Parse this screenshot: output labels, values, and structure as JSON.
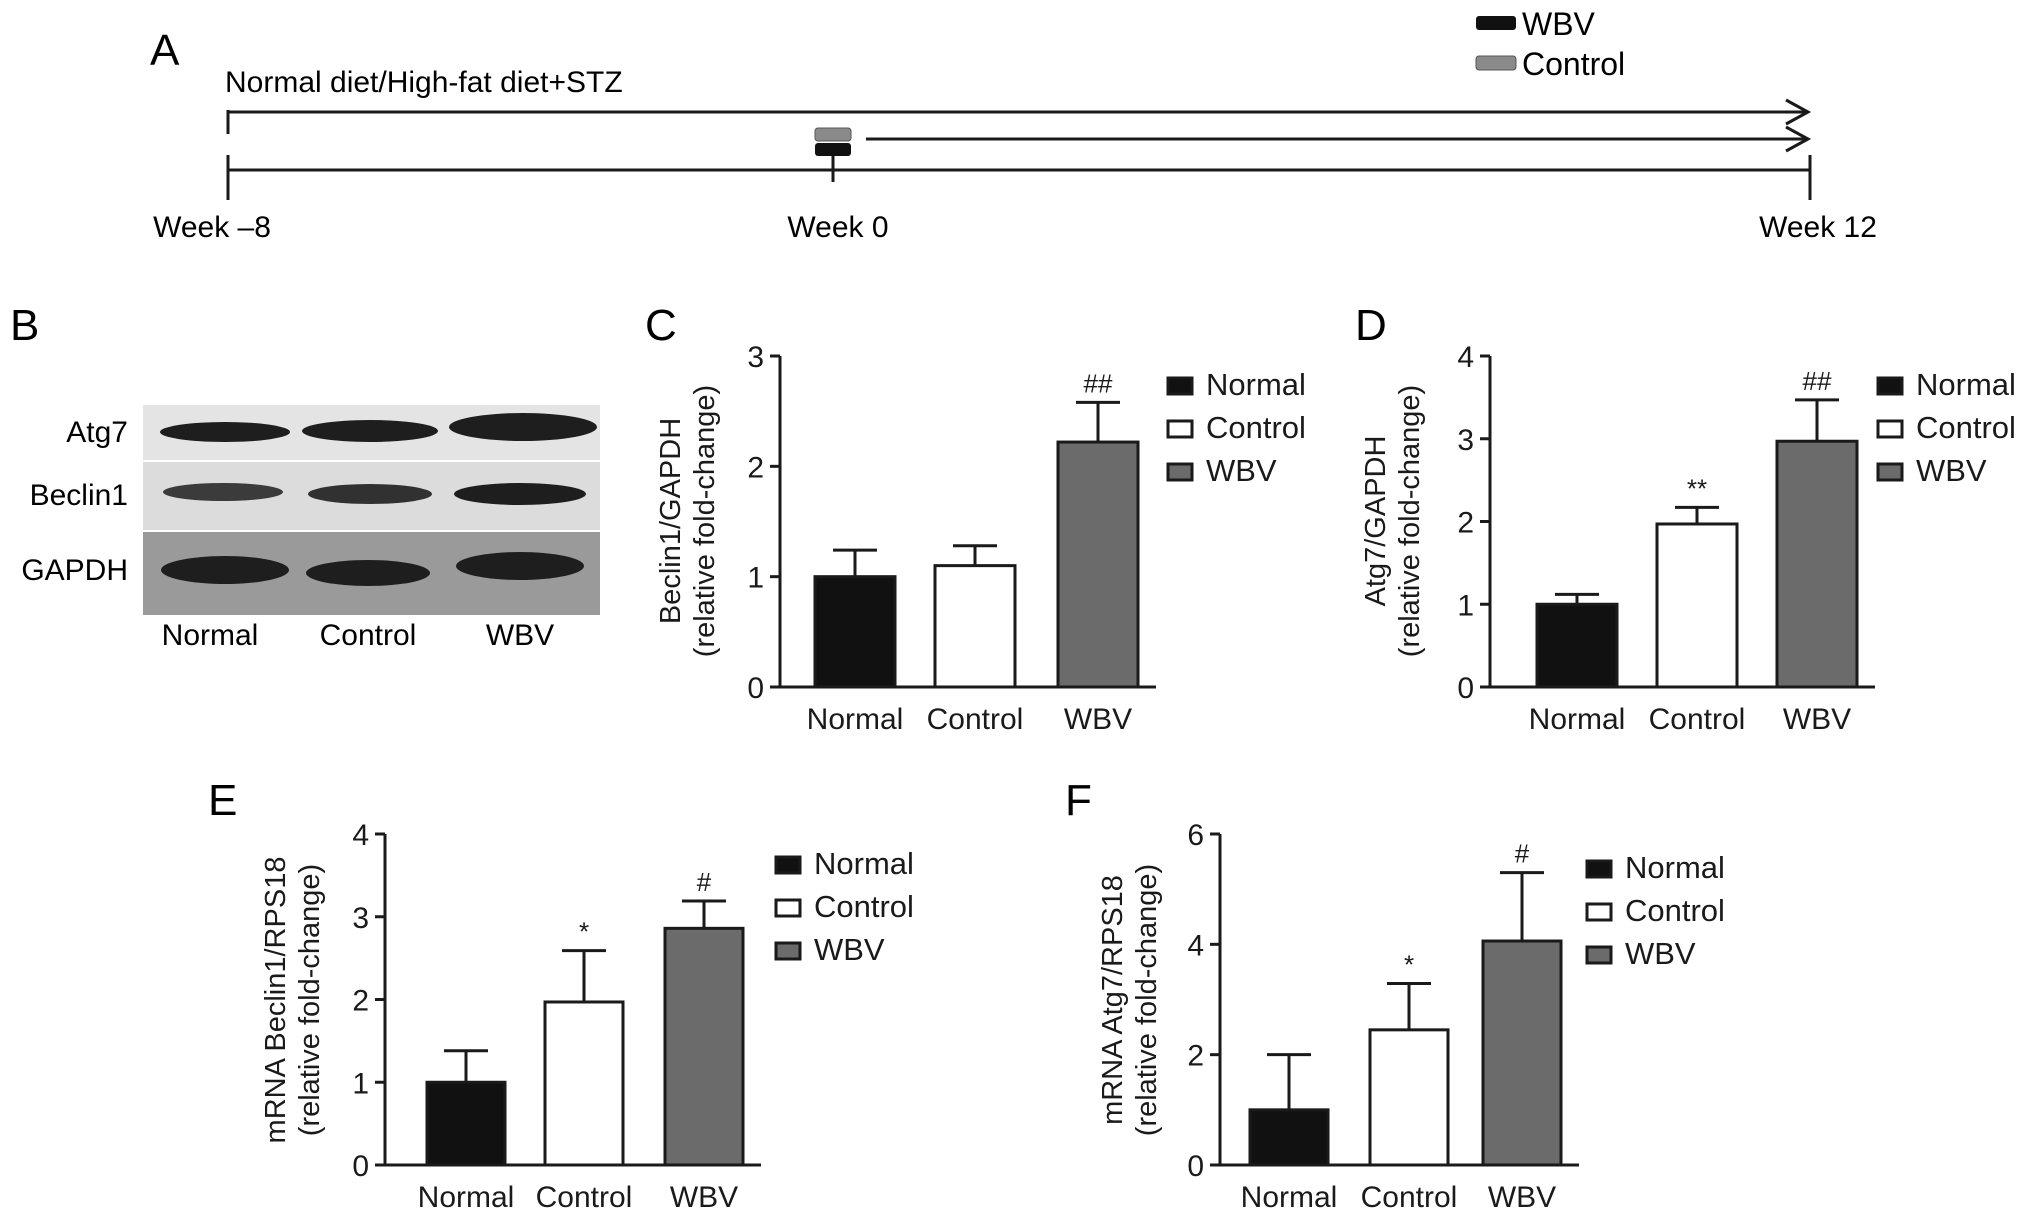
{
  "panel_letters": {
    "a": "A",
    "b": "B",
    "c": "C",
    "d": "D",
    "e": "E",
    "f": "F"
  },
  "timeline": {
    "regimen_label": "Normal diet/High-fat diet+STZ",
    "ticks": [
      "Week –8",
      "Week 0",
      "Week 12"
    ],
    "legend": [
      "WBV",
      "Control"
    ]
  },
  "blot": {
    "rows": [
      "Atg7",
      "Beclin1",
      "GAPDH"
    ],
    "lanes": [
      "Normal",
      "Control",
      "WBV"
    ]
  },
  "colors": {
    "Normal": "#111111",
    "Control": "#ffffff",
    "WBV": "#6b6b6b",
    "axis": "#1a1a1a"
  },
  "chart_data": [
    {
      "panel": "C",
      "type": "bar",
      "categories": [
        "Normal",
        "Control",
        "WBV"
      ],
      "values": [
        1.0,
        1.1,
        2.22
      ],
      "errors": [
        0.24,
        0.18,
        0.36
      ],
      "annotations": [
        "",
        "",
        "##"
      ],
      "ylabel_lines": [
        "Beclin1/GAPDH",
        "(relative fold-change)"
      ],
      "ylim": [
        0,
        3
      ],
      "yticks": [
        0,
        1,
        2,
        3
      ],
      "legend": [
        "Normal",
        "Control",
        "WBV"
      ]
    },
    {
      "panel": "D",
      "type": "bar",
      "categories": [
        "Normal",
        "Control",
        "WBV"
      ],
      "values": [
        1.0,
        1.97,
        2.97
      ],
      "errors": [
        0.12,
        0.2,
        0.5
      ],
      "annotations": [
        "",
        "**",
        "##"
      ],
      "ylabel_lines": [
        "Atg7/GAPDH",
        "(relative fold-change)"
      ],
      "ylim": [
        0,
        4
      ],
      "yticks": [
        0,
        1,
        2,
        3,
        4
      ],
      "legend": [
        "Normal",
        "Control",
        "WBV"
      ]
    },
    {
      "panel": "E",
      "type": "bar",
      "categories": [
        "Normal",
        "Control",
        "WBV"
      ],
      "values": [
        1.0,
        1.97,
        2.86
      ],
      "errors": [
        0.38,
        0.62,
        0.33
      ],
      "annotations": [
        "",
        "*",
        "#"
      ],
      "ylabel_lines": [
        "mRNA Beclin1/RPS18",
        "(relative fold-change)"
      ],
      "ylim": [
        0,
        4
      ],
      "yticks": [
        0,
        1,
        2,
        3,
        4
      ],
      "legend": [
        "Normal",
        "Control",
        "WBV"
      ]
    },
    {
      "panel": "F",
      "type": "bar",
      "categories": [
        "Normal",
        "Control",
        "WBV"
      ],
      "values": [
        1.0,
        2.45,
        4.06
      ],
      "errors": [
        1.0,
        0.84,
        1.24
      ],
      "annotations": [
        "",
        "*",
        "#"
      ],
      "ylabel_lines": [
        "mRNA Atg7/RPS18",
        "(relative fold-change)"
      ],
      "ylim": [
        0,
        6
      ],
      "yticks": [
        0,
        2,
        4,
        6
      ],
      "legend": [
        "Normal",
        "Control",
        "WBV"
      ]
    }
  ]
}
